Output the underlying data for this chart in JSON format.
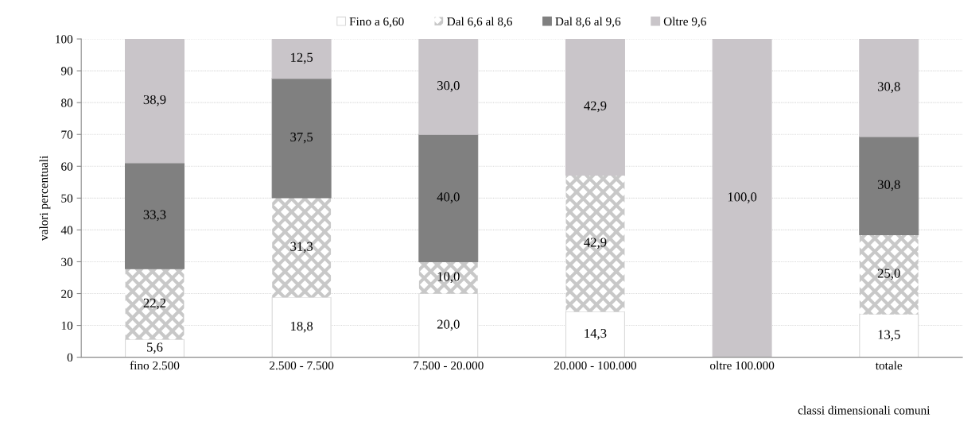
{
  "chart_data": {
    "type": "bar",
    "stacked": true,
    "xlabel": "classi dimensionali comuni",
    "ylabel": "valori percentuali",
    "categories": [
      "fino 2.500",
      "2.500 - 7.500",
      "7.500 - 20.000",
      "20.000 - 100.000",
      "oltre 100.000",
      "totale"
    ],
    "series": [
      {
        "name": "Fino a 6,60",
        "color": "#ffffff",
        "values": [
          5.6,
          18.8,
          20.0,
          14.3,
          null,
          13.5
        ],
        "value_labels": [
          "5,6",
          "18,8",
          "20,0",
          "14,3",
          null,
          "13,5"
        ]
      },
      {
        "name": "Dal 6,6 al 8,6",
        "color": "#c8c8c8",
        "values": [
          22.2,
          31.3,
          10.0,
          42.9,
          null,
          25.0
        ],
        "value_labels": [
          "22,2",
          "31,3",
          "10,0",
          "42,9",
          null,
          "25,0"
        ]
      },
      {
        "name": "Dal 8,6 al 9,6",
        "color": "#808080",
        "values": [
          33.3,
          37.5,
          40.0,
          null,
          null,
          30.8
        ],
        "value_labels": [
          "33,3",
          "37,5",
          "40,0",
          null,
          null,
          "30,8"
        ]
      },
      {
        "name": "Oltre 9,6",
        "color": "#c9c5c9",
        "values": [
          38.9,
          12.5,
          30.0,
          42.9,
          100.0,
          30.8
        ],
        "value_labels": [
          "38,9",
          "12,5",
          "30,0",
          "42,9",
          "100,0",
          "30,8"
        ]
      }
    ],
    "ylim": [
      0,
      100
    ],
    "yticks": [
      0,
      10,
      20,
      30,
      40,
      50,
      60,
      70,
      80,
      90,
      100
    ],
    "grid": "y",
    "legend": "top"
  }
}
